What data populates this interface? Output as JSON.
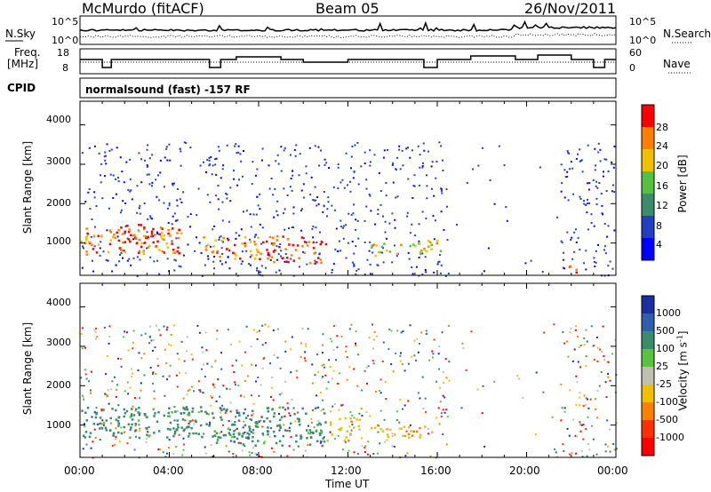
{
  "header": {
    "station": "McMurdo (fitACF)",
    "beam": "Beam 05",
    "date": "26/Nov/2011"
  },
  "noise_panel": {
    "left_label": "N.Sky",
    "right_label": "N.Search",
    "left_ticks": [
      "10^5",
      "10^0"
    ],
    "right_ticks": [
      "10^5",
      "10^0"
    ]
  },
  "freq_panel": {
    "left_label_1": "Freq.",
    "left_label_2": "[MHz]",
    "right_label": "Nave",
    "left_ticks": [
      "18",
      "8"
    ],
    "right_ticks": [
      "60",
      "0"
    ]
  },
  "cpid": {
    "label": "CPID",
    "value": "normalsound (fast) -157 RF"
  },
  "power_panel": {
    "ylabel": "Slant Range [km]",
    "yticks": [
      "4000",
      "3000",
      "2000",
      "1000"
    ],
    "colorbar_label": "Power [dB]",
    "colorbar_ticks": [
      "28",
      "24",
      "20",
      "16",
      "12",
      "8",
      "4"
    ],
    "colors": [
      "#0000ff",
      "#2040c0",
      "#3a8c6a",
      "#58c040",
      "#f0c000",
      "#ff8000",
      "#ff0000"
    ]
  },
  "velocity_panel": {
    "ylabel": "Slant Range [km]",
    "yticks": [
      "4000",
      "3000",
      "2000",
      "1000"
    ],
    "colorbar_label": "Velocity [m s",
    "colorbar_exp": "-1",
    "colorbar_label_end": "]",
    "colorbar_ticks": [
      "1000",
      "500",
      "100",
      "25",
      "-25",
      "-100",
      "-500",
      "-1000"
    ],
    "colors": [
      "#1a2ea0",
      "#2f5fa8",
      "#3a8c6a",
      "#5cc040",
      "#c0c0b0",
      "#f0c000",
      "#ff8000",
      "#ff3000",
      "#ff0000"
    ]
  },
  "xaxis": {
    "label": "Time UT",
    "ticks": [
      "00:00",
      "04:00",
      "08:00",
      "12:00",
      "16:00",
      "20:00",
      "00:00"
    ]
  },
  "chart_data": [
    {
      "type": "heatmap",
      "quantity": "Power [dB]",
      "ylabel": "Slant Range [km]",
      "xlabel": "Time UT",
      "x_range_hours": [
        0,
        24
      ],
      "ylim_km": [
        180,
        4600
      ],
      "color_scale_db": [
        0,
        30
      ],
      "regions": [
        {
          "t0": 0.0,
          "t1": 4.5,
          "r0": 700,
          "r1": 1400,
          "level": 5
        },
        {
          "t0": 1.5,
          "t1": 3.8,
          "r0": 900,
          "r1": 1500,
          "level": 6
        },
        {
          "t0": 5.5,
          "t1": 8.0,
          "r0": 600,
          "r1": 1200,
          "level": 5
        },
        {
          "t0": 8.0,
          "t1": 11.0,
          "r0": 500,
          "r1": 1200,
          "level": 6
        },
        {
          "t0": 13.0,
          "t1": 16.2,
          "r0": 700,
          "r1": 1100,
          "level": 4
        },
        {
          "t0": 21.8,
          "t1": 22.2,
          "r0": 200,
          "r1": 700,
          "level": 6
        }
      ]
    },
    {
      "type": "heatmap",
      "quantity": "Velocity [m s-1]",
      "ylabel": "Slant Range [km]",
      "xlabel": "Time UT",
      "x_range_hours": [
        0,
        24
      ],
      "ylim_km": [
        180,
        4600
      ],
      "color_scale_ms": [
        -1000,
        1000
      ],
      "regions": [
        {
          "t0": 0.0,
          "t1": 11.0,
          "r0": 700,
          "r1": 1500,
          "value": 100
        },
        {
          "t0": 11.0,
          "t1": 12.5,
          "r0": 600,
          "r1": 1200,
          "value": -100
        },
        {
          "t0": 13.0,
          "t1": 16.2,
          "r0": 700,
          "r1": 1000,
          "value": -100
        },
        {
          "t0": 5.5,
          "t1": 11.0,
          "r0": 500,
          "r1": 900,
          "value": 100
        }
      ]
    }
  ]
}
